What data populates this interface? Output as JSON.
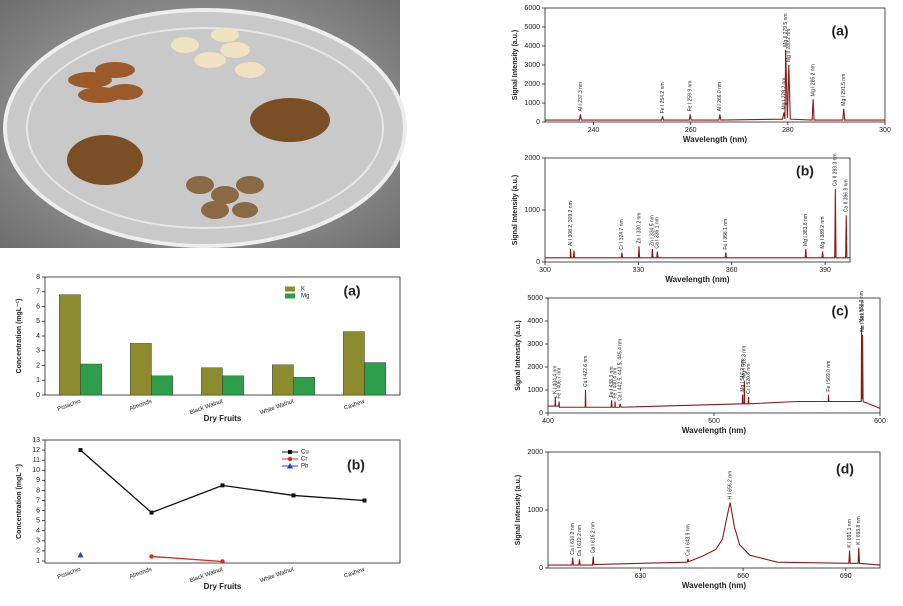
{
  "chart_data": [
    {
      "type": "bar",
      "panel_label": "(a)",
      "ylabel": "Concentration (mgL⁻¹)",
      "xlabel": "Dry Fruits",
      "categories": [
        "Pistachio",
        "Almonds",
        "Black Walnut",
        "White Walnut",
        "Cashew"
      ],
      "series": [
        {
          "name": "K",
          "color": "#8c8c2e",
          "values": [
            6.8,
            3.5,
            1.85,
            2.05,
            4.3
          ]
        },
        {
          "name": "Mg",
          "color": "#2f9e4c",
          "values": [
            2.1,
            1.3,
            1.3,
            1.2,
            2.2
          ]
        }
      ],
      "ylim": [
        0,
        8
      ],
      "yticks": [
        0,
        1,
        2,
        3,
        4,
        5,
        6,
        7,
        8
      ],
      "legend": "upper right"
    },
    {
      "type": "line",
      "panel_label": "(b)",
      "ylabel": "Concentration (mgL⁻¹)",
      "xlabel": "Dry Fruits",
      "categories": [
        "Pistachio",
        "Almonds",
        "Black Walnut",
        "White Walnut",
        "Cashew"
      ],
      "series": [
        {
          "name": "Cu",
          "color": "#111111",
          "marker": "square",
          "values": [
            12,
            5.8,
            8.5,
            7.5,
            7.0
          ]
        },
        {
          "name": "Cr",
          "color": "#d62c1f",
          "marker": "circle",
          "values": [
            null,
            1.45,
            0.95,
            null,
            null
          ]
        },
        {
          "name": "Pb",
          "color": "#2a3fbf",
          "marker": "triangle",
          "values": [
            1.6,
            null,
            null,
            null,
            null
          ]
        }
      ],
      "ylim": [
        0.8,
        13
      ],
      "yticks": [
        1,
        2,
        3,
        4,
        5,
        6,
        7,
        8,
        9,
        10,
        11,
        12,
        13
      ],
      "legend": "upper right"
    },
    {
      "type": "line",
      "panel_label": "(a)",
      "ylabel": "Signal Intensity (a.u.)",
      "xlabel": "Wavelength (nm)",
      "x": [
        230,
        237.1,
        237.3,
        237.5,
        254,
        254.2,
        254.4,
        259.7,
        259.9,
        260.1,
        265.8,
        266,
        266.2,
        278.9,
        279.2,
        279.4,
        279.55,
        279.9,
        280.2,
        280.5,
        285,
        285.2,
        285.4,
        291.3,
        291.5,
        291.7,
        300
      ],
      "series": [
        {
          "color": "#8b1a1a",
          "values": [
            100,
            100,
            400,
            100,
            100,
            300,
            100,
            100,
            400,
            100,
            100,
            400,
            100,
            150,
            500,
            150,
            3800,
            200,
            3000,
            150,
            100,
            1200,
            100,
            100,
            700,
            100,
            100
          ]
        }
      ],
      "annotations": [
        {
          "text": "Al I 237.3 nm",
          "x": 237.3
        },
        {
          "text": "Fe I 254.2 nm",
          "x": 254.2
        },
        {
          "text": "Fe I 259.9 nm",
          "x": 259.9
        },
        {
          "text": "Al I 266.0 nm",
          "x": 266
        },
        {
          "text": "Mg I 279.2 nm",
          "x": 279.2
        },
        {
          "text": "Mg II 279.5 nm",
          "x": 279.55
        },
        {
          "text": "Mg II 280.2 nm",
          "x": 280.2
        },
        {
          "text": "Mg I 285.2 nm",
          "x": 285.2
        },
        {
          "text": "Mg I 291.5 nm",
          "x": 291.5
        }
      ],
      "xlim": [
        230,
        300
      ],
      "xticks": [
        240,
        260,
        280,
        300
      ],
      "ylim": [
        0,
        6000
      ],
      "yticks": [
        0,
        1000,
        2000,
        3000,
        4000,
        5000,
        6000
      ]
    },
    {
      "type": "line",
      "panel_label": "(b)",
      "ylabel": "Signal Intensity (a.u.)",
      "xlabel": "Wavelength (nm)",
      "x": [
        300,
        308.1,
        308.2,
        308.4,
        309.1,
        309.3,
        309.5,
        324.5,
        324.7,
        324.9,
        330,
        330.2,
        330.4,
        334.3,
        334.5,
        334.7,
        335.9,
        336.1,
        336.3,
        357.9,
        358.1,
        358.3,
        383.6,
        383.8,
        384,
        389,
        389.2,
        389.4,
        393.1,
        393.3,
        393.5,
        396.6,
        396.8,
        397,
        398
      ],
      "series": [
        {
          "color": "#8b1a1a",
          "values": [
            80,
            80,
            250,
            80,
            80,
            220,
            80,
            80,
            180,
            80,
            80,
            300,
            80,
            80,
            250,
            80,
            80,
            200,
            80,
            80,
            180,
            80,
            80,
            250,
            80,
            80,
            200,
            80,
            80,
            1400,
            80,
            80,
            900,
            80,
            80
          ]
        }
      ],
      "annotations": [
        {
          "text": "Al I 308.2, 309.2 nm",
          "x": 308.2
        },
        {
          "text": "Cr I 324.7 nm",
          "x": 324.7
        },
        {
          "text": "Zn I 330.2 nm",
          "x": 330.2
        },
        {
          "text": "Zn I 334.5 nm",
          "x": 334.5
        },
        {
          "text": "Ca I 336.1 nm",
          "x": 336.1
        },
        {
          "text": "Fe I 358.1 nm",
          "x": 358.1
        },
        {
          "text": "Mg I 383.8 nm",
          "x": 383.8
        },
        {
          "text": "Mg I 389.2 nm",
          "x": 389.2
        },
        {
          "text": "Ca II 393.3 nm",
          "x": 393.3
        },
        {
          "text": "Ca II 396.8 nm",
          "x": 396.8
        }
      ],
      "xlim": [
        300,
        398
      ],
      "xticks": [
        300,
        330,
        360,
        390
      ],
      "ylim": [
        0,
        2000
      ],
      "yticks": [
        0,
        1000,
        2000
      ]
    },
    {
      "type": "line",
      "panel_label": "(c)",
      "ylabel": "Signal Intensity (a.u.)",
      "xlabel": "Wavelength (nm)",
      "x": [
        400,
        404.2,
        404.4,
        404.6,
        406.5,
        406.7,
        406.9,
        422.4,
        422.6,
        422.8,
        438,
        438.3,
        438.6,
        440.2,
        440.4,
        440.6,
        443,
        443.5,
        444,
        517,
        517.2,
        517.4,
        518.1,
        518.3,
        518.5,
        520.6,
        520.8,
        521,
        550,
        568.8,
        569,
        569.2,
        588.7,
        588.9,
        589.2,
        589.5,
        589.8,
        600
      ],
      "series": [
        {
          "color": "#8b1a1a",
          "values": [
            300,
            300,
            700,
            300,
            300,
            500,
            250,
            250,
            1000,
            250,
            250,
            550,
            250,
            250,
            500,
            250,
            250,
            400,
            250,
            400,
            800,
            400,
            400,
            1400,
            400,
            400,
            700,
            400,
            500,
            500,
            800,
            500,
            500,
            3800,
            600,
            3400,
            500,
            200
          ]
        }
      ],
      "annotations": [
        {
          "text": "K I 404.4 nm",
          "x": 404.4
        },
        {
          "text": "Fe I 406.7 nm",
          "x": 406.7
        },
        {
          "text": "Ca I 422.6 nm",
          "x": 422.6
        },
        {
          "text": "Fe I 438.3 nm",
          "x": 438.3
        },
        {
          "text": "Fe I 440.4 nm",
          "x": 440.4
        },
        {
          "text": "Ca I 442.5, 443.5, 445.4 nm",
          "x": 443.5
        },
        {
          "text": "Mg I 517.2 nm",
          "x": 517.2
        },
        {
          "text": "Mg I 518.3 nm",
          "x": 518.3
        },
        {
          "text": "Cr I 520.8 nm",
          "x": 520.8
        },
        {
          "text": "Fe I 569.0 nm",
          "x": 569
        },
        {
          "text": "Na I 588.9 nm",
          "x": 588.9
        },
        {
          "text": "Na I 589.5 nm",
          "x": 589.5
        }
      ],
      "xlim": [
        400,
        600
      ],
      "xticks": [
        400,
        500,
        600
      ],
      "ylim": [
        0,
        5000
      ],
      "yticks": [
        0,
        1000,
        2000,
        3000,
        4000,
        5000
      ]
    },
    {
      "type": "line",
      "panel_label": "(d)",
      "ylabel": "Signal Intensity (a.u.)",
      "xlabel": "Wavelength (nm)",
      "x": [
        603,
        610,
        610.2,
        610.4,
        612,
        612.2,
        612.4,
        616,
        616.2,
        616.4,
        630,
        643.7,
        643.9,
        644.1,
        648,
        652,
        654,
        655,
        656.2,
        657.5,
        659,
        662,
        670,
        690.9,
        691.1,
        691.3,
        693.6,
        693.8,
        694,
        700
      ],
      "series": [
        {
          "color": "#8b1a1a",
          "values": [
            50,
            50,
            180,
            50,
            50,
            150,
            50,
            50,
            200,
            60,
            80,
            100,
            160,
            110,
            200,
            320,
            500,
            800,
            1130,
            700,
            400,
            220,
            100,
            80,
            300,
            80,
            80,
            350,
            80,
            50
          ]
        }
      ],
      "annotations": [
        {
          "text": "Ca I 610.2 nm",
          "x": 610.2
        },
        {
          "text": "Ca I 612.2 nm",
          "x": 612.2
        },
        {
          "text": "Ca I 616.2 nm",
          "x": 616.2
        },
        {
          "text": "Ca I 643.9 nm",
          "x": 643.9
        },
        {
          "text": "H I 656.2 nm",
          "x": 656.2
        },
        {
          "text": "K I 691.1 nm",
          "x": 691.1
        },
        {
          "text": "K I 693.8 nm",
          "x": 693.8
        }
      ],
      "xlim": [
        603,
        700
      ],
      "xticks": [
        630,
        660,
        690
      ],
      "ylim": [
        0,
        2000
      ],
      "yticks": [
        0,
        1000,
        2000
      ]
    }
  ]
}
